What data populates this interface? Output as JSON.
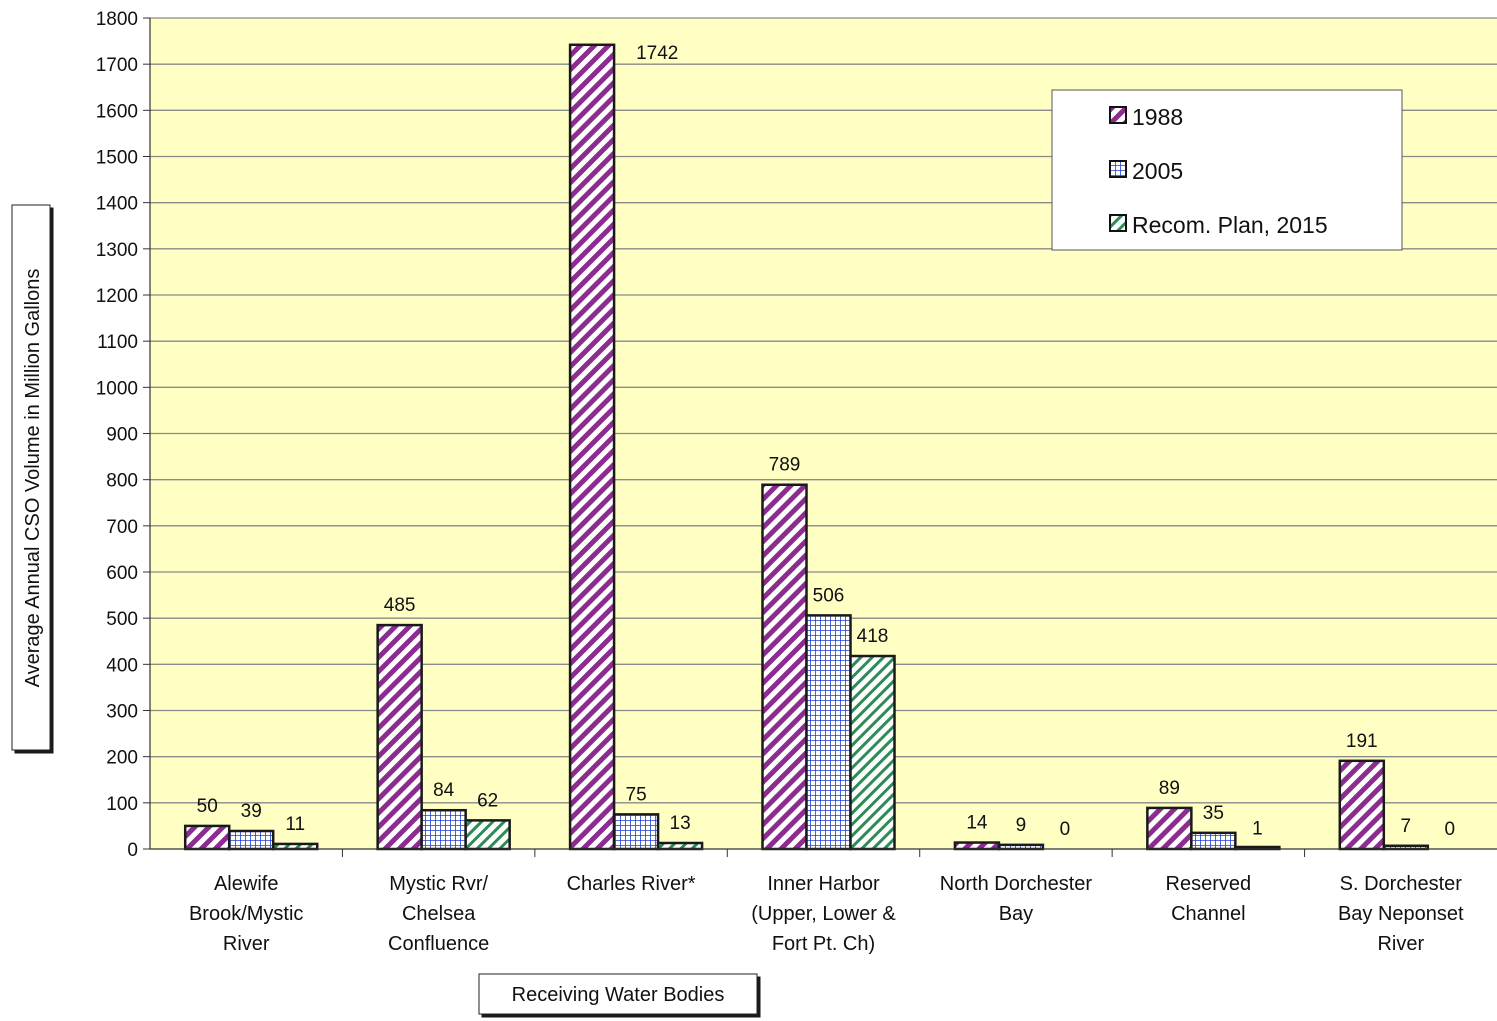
{
  "chart_data": {
    "type": "bar",
    "title": "",
    "xlabel": "Receiving Water Bodies",
    "ylabel": "Average Annual CSO Volume in Million Gallons",
    "ylim": [
      0,
      1800
    ],
    "ytick_step": 100,
    "grid": true,
    "legend_position": "top-right",
    "categories": [
      [
        "Alewife",
        "Brook/Mystic",
        "River"
      ],
      [
        "Mystic Rvr/",
        "Chelsea",
        "Confluence"
      ],
      [
        "Charles River*"
      ],
      [
        "Inner Harbor",
        "(Upper, Lower &",
        "Fort Pt. Ch)"
      ],
      [
        "North Dorchester",
        "Bay"
      ],
      [
        "Reserved",
        "Channel"
      ],
      [
        "S. Dorchester",
        "Bay  Neponset",
        "River"
      ]
    ],
    "series": [
      {
        "name": "1988",
        "values": [
          50,
          485,
          1742,
          789,
          14,
          89,
          191
        ],
        "labels": [
          "50",
          "485",
          "1742",
          "789",
          "14",
          "89",
          "191"
        ],
        "color": "#8b2d8f",
        "pattern": "diagonal-stripes"
      },
      {
        "name": "2005",
        "values": [
          39,
          84,
          75,
          506,
          9,
          35,
          7
        ],
        "labels": [
          "39",
          "84",
          "75",
          "506",
          "9",
          "35",
          "7"
        ],
        "color": "#1f3fcf",
        "pattern": "grid"
      },
      {
        "name": "Recom. Plan, 2015",
        "values": [
          11,
          62,
          13,
          418,
          0,
          1,
          0
        ],
        "labels": [
          "11",
          "62",
          "13",
          "418",
          "0",
          "1",
          "0"
        ],
        "color": "#2e8b57",
        "pattern": "diagonal-stripes"
      }
    ],
    "colors": {
      "plot_background": "#ffffc4",
      "gridline": "#8a8a8a",
      "bar_outline": "#1a1a1a",
      "stripe_1988": "#8b2d8f",
      "grid_2005": "#1f3fcf",
      "stripe_2015": "#2e8b57"
    }
  }
}
